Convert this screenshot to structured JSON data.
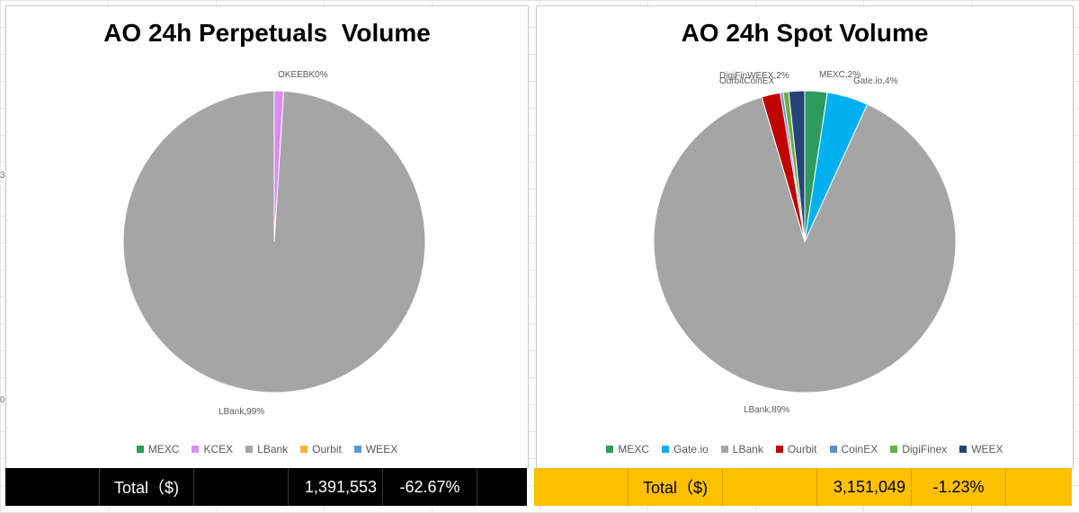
{
  "chart_data": [
    {
      "type": "pie",
      "title": "AO 24h Perpetuals  Volume",
      "slices": [
        {
          "label": "MEXC",
          "value": 0,
          "color": "#2e9a5e",
          "data_label": ""
        },
        {
          "label": "KCEX",
          "value": 1,
          "color": "#d98cf2",
          "data_label": ""
        },
        {
          "label": "LBank",
          "value": 99,
          "color": "#a5a5a5",
          "data_label": "LBank,99%"
        },
        {
          "label": "Ourbit",
          "value": 0,
          "color": "#f5b335",
          "data_label": ""
        },
        {
          "label": "WEEX",
          "value": 0,
          "color": "#5b9bd5",
          "data_label": ""
        }
      ],
      "small_labels_text": "OKEEBK0%",
      "legend": [
        "MEXC",
        "KCEX",
        "LBank",
        "Ourbit",
        "WEEX"
      ],
      "legend_position": "bottom"
    },
    {
      "type": "pie",
      "title": "AO 24h Spot Volume",
      "slices": [
        {
          "label": "MEXC",
          "value": 2.4,
          "color": "#2e9a5e",
          "data_label": "MEXC,2%"
        },
        {
          "label": "Gate.io",
          "value": 4.4,
          "color": "#00b0f0",
          "data_label": "Gate.io,4%"
        },
        {
          "label": "LBank",
          "value": 88.6,
          "color": "#a5a5a5",
          "data_label": "LBank,89%"
        },
        {
          "label": "Ourbit",
          "value": 2.0,
          "color": "#c00000",
          "data_label": ""
        },
        {
          "label": "CoinEX",
          "value": 0.3,
          "color": "#5b8fd0",
          "data_label": ""
        },
        {
          "label": "DigiFinex",
          "value": 0.6,
          "color": "#70ad47",
          "data_label": ""
        },
        {
          "label": "WEEX",
          "value": 1.7,
          "color": "#264478",
          "data_label": ""
        }
      ],
      "small_labels_text": "DigiFinWEEX,2%",
      "small_labels_text_2": "OurbitCoinEX",
      "legend": [
        "MEXC",
        "Gate.io",
        "LBank",
        "Ourbit",
        "CoinEX",
        "DigiFinex",
        "WEEX"
      ],
      "legend_position": "bottom"
    }
  ],
  "totals": {
    "perpetuals": {
      "label": "Total（$)",
      "value": "1,391,553",
      "change": "-62.67%"
    },
    "spot": {
      "label": "Total（$)",
      "value": "3,151,049",
      "change": "-1.23%"
    }
  },
  "colors": {
    "perp_total_bg": "#000000",
    "spot_total_bg": "#ffc000"
  }
}
